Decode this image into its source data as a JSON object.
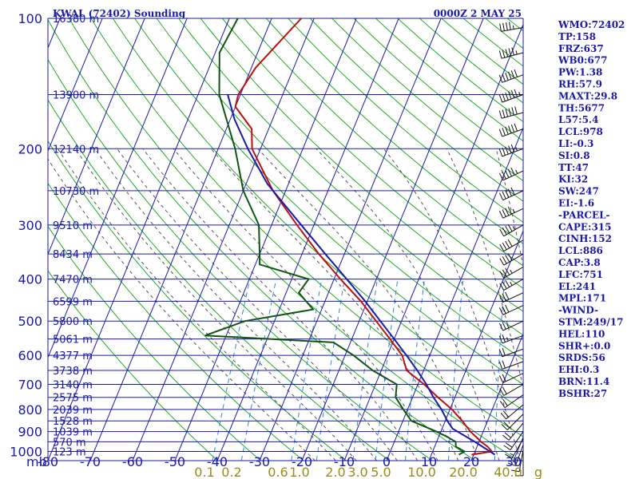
{
  "header": {
    "station": "KWAL (72402) Sounding",
    "time": "0000Z  2 MAY 25"
  },
  "indices": [
    "WMO:72402",
    "TP:158",
    "FRZ:637",
    "WB0:677",
    "PW:1.38",
    "RH:57.9",
    "MAXT:29.8",
    "TH:5677",
    "L57:5.4",
    "LCL:978",
    "LI:-0.3",
    "SI:0.8",
    "TT:47",
    "KI:32",
    "SW:247",
    "EI:-1.6",
    "-PARCEL-",
    "CAPE:315",
    "CINH:152",
    "LCL:886",
    "CAP:3.8",
    "LFC:751",
    "EL:241",
    "MPL:171",
    "-WIND-",
    "STM:249/17",
    "HEL:110",
    "SHR+:0.0",
    "SRDS:56",
    "EHI:0.3",
    "BRN:11.4",
    "BSHR:27"
  ],
  "colors": {
    "grid": "#1a1aa8",
    "dry_adiabat": "#22aa22",
    "moist_adiabat": "#555555",
    "mixing_ratio": "#3388cc",
    "temperature": "#bb1111",
    "dewpoint": "#115511",
    "parcel": "#1a1aa8",
    "mixing_label": "#9a8a1a"
  },
  "chart_data": {
    "type": "line",
    "pressure_axis_label": "mb",
    "pressure_levels": [
      100,
      200,
      300,
      400,
      500,
      600,
      700,
      800,
      900,
      1000
    ],
    "pressure_range": [
      1050,
      100
    ],
    "temperature_ticks": [
      -80,
      -70,
      -60,
      -50,
      -40,
      -30,
      -20,
      -10,
      0,
      10,
      20,
      30
    ],
    "height_labels": [
      {
        "p": 100,
        "label": "16380 m"
      },
      {
        "p": 150,
        "label": "13900 m"
      },
      {
        "p": 200,
        "label": "12140 m"
      },
      {
        "p": 250,
        "label": "10730 m"
      },
      {
        "p": 300,
        "label": "9510 m"
      },
      {
        "p": 350,
        "label": "8434 m"
      },
      {
        "p": 400,
        "label": "7470 m"
      },
      {
        "p": 450,
        "label": "6599 m"
      },
      {
        "p": 500,
        "label": "5800 m"
      },
      {
        "p": 550,
        "label": "5061 m"
      },
      {
        "p": 600,
        "label": "4377 m"
      },
      {
        "p": 650,
        "label": "3738 m"
      },
      {
        "p": 700,
        "label": "3140 m"
      },
      {
        "p": 750,
        "label": "2575 m"
      },
      {
        "p": 800,
        "label": "2039 m"
      },
      {
        "p": 850,
        "label": "1528 m"
      },
      {
        "p": 900,
        "label": "1039 m"
      },
      {
        "p": 950,
        "label": "570 m"
      },
      {
        "p": 1000,
        "label": "123 m"
      }
    ],
    "mixing_ratio_labels": [
      "0.1",
      "0.2",
      "0.6",
      "1.0",
      "2.0",
      "3.0",
      "5.0",
      "10.0",
      "20.0",
      "40.0",
      "g"
    ],
    "series": [
      {
        "name": "temperature",
        "points": [
          {
            "p": 1017,
            "t": 19.5
          },
          {
            "p": 1000,
            "t": 24.0
          },
          {
            "p": 975,
            "t": 22.5
          },
          {
            "p": 950,
            "t": 20.5
          },
          {
            "p": 925,
            "t": 18.8
          },
          {
            "p": 900,
            "t": 17.0
          },
          {
            "p": 850,
            "t": 14.0
          },
          {
            "p": 800,
            "t": 10.5
          },
          {
            "p": 750,
            "t": 6.0
          },
          {
            "p": 700,
            "t": 1.5
          },
          {
            "p": 650,
            "t": -4.0
          },
          {
            "p": 600,
            "t": -6.5
          },
          {
            "p": 550,
            "t": -11.0
          },
          {
            "p": 500,
            "t": -16.0
          },
          {
            "p": 450,
            "t": -21.5
          },
          {
            "p": 400,
            "t": -28.5
          },
          {
            "p": 350,
            "t": -36.0
          },
          {
            "p": 300,
            "t": -44.0
          },
          {
            "p": 250,
            "t": -53.0
          },
          {
            "p": 200,
            "t": -62.0
          },
          {
            "p": 180,
            "t": -64.0
          },
          {
            "p": 160,
            "t": -70.0
          },
          {
            "p": 150,
            "t": -70.5
          },
          {
            "p": 130,
            "t": -69.0
          },
          {
            "p": 100,
            "t": -63.0
          }
        ]
      },
      {
        "name": "dewpoint",
        "points": [
          {
            "p": 1017,
            "t": 16.5
          },
          {
            "p": 1000,
            "t": 17.5
          },
          {
            "p": 975,
            "t": 15.0
          },
          {
            "p": 950,
            "t": 14.5
          },
          {
            "p": 925,
            "t": 12.0
          },
          {
            "p": 900,
            "t": 9.0
          },
          {
            "p": 850,
            "t": 2.0
          },
          {
            "p": 800,
            "t": -1.0
          },
          {
            "p": 750,
            "t": -4.0
          },
          {
            "p": 700,
            "t": -5.0
          },
          {
            "p": 650,
            "t": -12.0
          },
          {
            "p": 600,
            "t": -18.0
          },
          {
            "p": 560,
            "t": -24.0
          },
          {
            "p": 540,
            "t": -55.0
          },
          {
            "p": 500,
            "t": -47.0
          },
          {
            "p": 470,
            "t": -32.0
          },
          {
            "p": 430,
            "t": -37.0
          },
          {
            "p": 400,
            "t": -36.0
          },
          {
            "p": 370,
            "t": -49.0
          },
          {
            "p": 350,
            "t": -50.0
          },
          {
            "p": 300,
            "t": -53.0
          },
          {
            "p": 250,
            "t": -60.0
          },
          {
            "p": 200,
            "t": -66.0
          },
          {
            "p": 150,
            "t": -75.0
          },
          {
            "p": 120,
            "t": -79.0
          },
          {
            "p": 100,
            "t": -78.0
          }
        ]
      },
      {
        "name": "parcel",
        "points": [
          {
            "p": 1017,
            "t": 25.0
          },
          {
            "p": 950,
            "t": 19.0
          },
          {
            "p": 886,
            "t": 12.5
          },
          {
            "p": 850,
            "t": 10.5
          },
          {
            "p": 800,
            "t": 8.0
          },
          {
            "p": 751,
            "t": 5.0
          },
          {
            "p": 700,
            "t": 2.0
          },
          {
            "p": 650,
            "t": -1.5
          },
          {
            "p": 600,
            "t": -5.5
          },
          {
            "p": 550,
            "t": -10.0
          },
          {
            "p": 500,
            "t": -15.0
          },
          {
            "p": 450,
            "t": -20.5
          },
          {
            "p": 400,
            "t": -27.0
          },
          {
            "p": 350,
            "t": -34.5
          },
          {
            "p": 300,
            "t": -43.0
          },
          {
            "p": 241,
            "t": -55.0
          },
          {
            "p": 200,
            "t": -63.0
          },
          {
            "p": 171,
            "t": -69.0
          },
          {
            "p": 150,
            "t": -73.0
          }
        ]
      }
    ],
    "wind_barbs": [
      {
        "p": 105,
        "dir": 260,
        "spd": 45
      },
      {
        "p": 120,
        "dir": 255,
        "spd": 55
      },
      {
        "p": 135,
        "dir": 250,
        "spd": 60
      },
      {
        "p": 150,
        "dir": 250,
        "spd": 65
      },
      {
        "p": 165,
        "dir": 255,
        "spd": 60
      },
      {
        "p": 180,
        "dir": 250,
        "spd": 60
      },
      {
        "p": 200,
        "dir": 250,
        "spd": 55
      },
      {
        "p": 225,
        "dir": 245,
        "spd": 55
      },
      {
        "p": 250,
        "dir": 245,
        "spd": 50
      },
      {
        "p": 275,
        "dir": 245,
        "spd": 45
      },
      {
        "p": 300,
        "dir": 240,
        "spd": 45
      },
      {
        "p": 325,
        "dir": 240,
        "spd": 40
      },
      {
        "p": 350,
        "dir": 240,
        "spd": 40
      },
      {
        "p": 375,
        "dir": 240,
        "spd": 35
      },
      {
        "p": 400,
        "dir": 240,
        "spd": 35
      },
      {
        "p": 430,
        "dir": 245,
        "spd": 30
      },
      {
        "p": 460,
        "dir": 245,
        "spd": 30
      },
      {
        "p": 500,
        "dir": 245,
        "spd": 25
      },
      {
        "p": 540,
        "dir": 250,
        "spd": 25
      },
      {
        "p": 580,
        "dir": 250,
        "spd": 20
      },
      {
        "p": 620,
        "dir": 250,
        "spd": 20
      },
      {
        "p": 660,
        "dir": 245,
        "spd": 20
      },
      {
        "p": 700,
        "dir": 240,
        "spd": 20
      },
      {
        "p": 740,
        "dir": 235,
        "spd": 20
      },
      {
        "p": 780,
        "dir": 230,
        "spd": 20
      },
      {
        "p": 820,
        "dir": 225,
        "spd": 20
      },
      {
        "p": 860,
        "dir": 220,
        "spd": 20
      },
      {
        "p": 900,
        "dir": 215,
        "spd": 20
      },
      {
        "p": 935,
        "dir": 210,
        "spd": 15
      },
      {
        "p": 965,
        "dir": 200,
        "spd": 15
      },
      {
        "p": 990,
        "dir": 190,
        "spd": 10
      },
      {
        "p": 1010,
        "dir": 180,
        "spd": 10
      }
    ]
  }
}
